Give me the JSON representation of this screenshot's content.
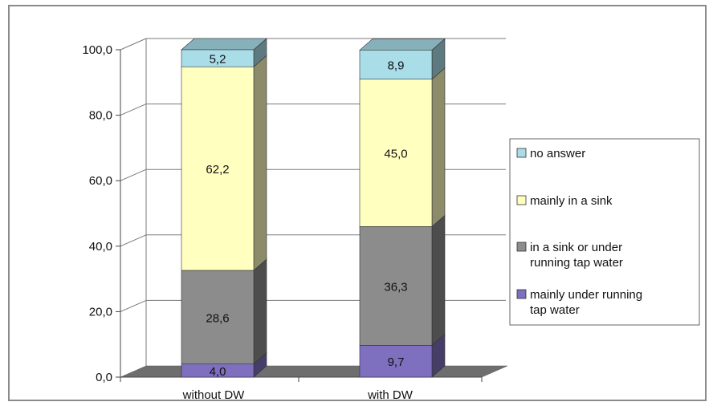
{
  "chart_data": {
    "type": "bar",
    "stacked": true,
    "three_d": true,
    "categories": [
      "without DW",
      "with DW"
    ],
    "ylim": [
      0,
      100
    ],
    "yticks": [
      "0,0",
      "20,0",
      "40,0",
      "60,0",
      "80,0",
      "100,0"
    ],
    "series": [
      {
        "name": "mainly under running tap water",
        "values": [
          4.0,
          9.7
        ],
        "labels": [
          "4,0",
          "9,7"
        ],
        "color": "#7f6fbf"
      },
      {
        "name": "in a sink or under running tap water",
        "values": [
          28.6,
          36.3
        ],
        "labels": [
          "28,6",
          "36,3"
        ],
        "color": "#8c8c8c"
      },
      {
        "name": "mainly in a sink",
        "values": [
          62.2,
          45.0
        ],
        "labels": [
          "62,2",
          "45,0"
        ],
        "color": "#ffffc0"
      },
      {
        "name": "no answer",
        "values": [
          5.2,
          8.9
        ],
        "labels": [
          "5,2",
          "8,9"
        ],
        "color": "#a9dde8"
      }
    ],
    "legend": {
      "placement": "right",
      "entries": [
        {
          "lines": [
            "no answer"
          ],
          "series_index": 3
        },
        {
          "lines": [
            "mainly in a sink"
          ],
          "series_index": 2
        },
        {
          "lines": [
            "in a sink or under",
            "running tap water"
          ],
          "series_index": 1
        },
        {
          "lines": [
            "mainly under running",
            "tap water"
          ],
          "series_index": 0
        }
      ]
    },
    "grid": true,
    "floor_color": "#6e6e6e"
  }
}
